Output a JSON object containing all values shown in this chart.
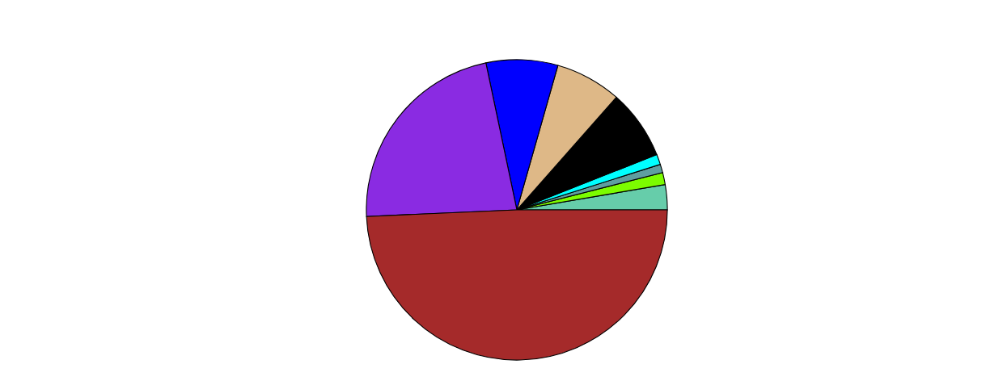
{
  "chart_data": {
    "type": "pie",
    "categories": [
      null,
      null,
      null,
      null,
      null,
      null,
      null,
      null,
      null
    ],
    "values": [
      2.7,
      1.3,
      0.9,
      1.1,
      7.5,
      7.1,
      7.7,
      22.4,
      49.3
    ],
    "colors": [
      "#66cdaa",
      "#7cfc00",
      "#5f9ea0",
      "#00ffff",
      "#000000",
      "#deb887",
      "#0000ff",
      "#8a2be2",
      "#a52a2a"
    ]
  }
}
